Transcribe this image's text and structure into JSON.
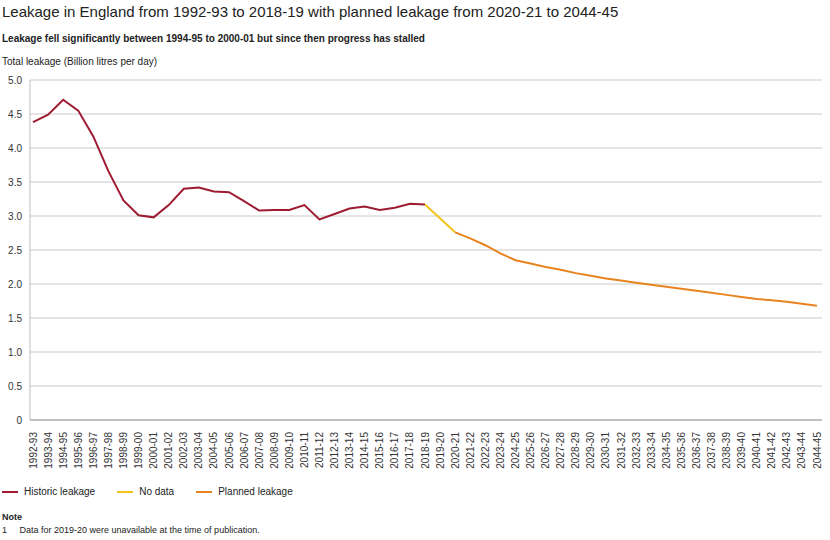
{
  "chart_data": {
    "type": "line",
    "title": "Leakage in England from 1992-93 to 2018-19 with planned leakage from 2020-21 to 2044-45",
    "subtitle": "Leakage fell significantly between 1994-95 to 2000-01 but since then progress has stalled",
    "y_label": "Total leakage (Billion litres per day)",
    "note_title": "Note",
    "note": "1     Data for 2019-20 were unavailable at the time of publication.",
    "categories": [
      "1992-93",
      "1993-94",
      "1994-95",
      "1995-96",
      "1996-97",
      "1997-98",
      "1998-99",
      "1999-00",
      "2000-01",
      "2001-02",
      "2002-03",
      "2003-04",
      "2004-05",
      "2005-06",
      "2006-07",
      "2007-08",
      "2008-09",
      "2009-10",
      "2010-11",
      "2011-12",
      "2012-13",
      "2013-14",
      "2014-15",
      "2015-16",
      "2016-17",
      "2017-18",
      "2018-19",
      "2019-20",
      "2020-21",
      "2021-22",
      "2022-23",
      "2023-24",
      "2024-25",
      "2025-26",
      "2026-27",
      "2027-28",
      "2028-29",
      "2029-30",
      "2030-31",
      "2031-32",
      "2032-33",
      "2033-34",
      "2034-35",
      "2035-36",
      "2036-37",
      "2037-38",
      "2038-39",
      "2039-40",
      "2040-41",
      "2041-42",
      "2042-43",
      "2043-44",
      "2044-45"
    ],
    "series": [
      {
        "name": "Historic leakage",
        "color": "#9e1b32",
        "values": [
          4.38,
          4.49,
          4.71,
          4.55,
          4.17,
          3.66,
          3.23,
          3.01,
          2.98,
          3.16,
          3.4,
          3.42,
          3.36,
          3.35,
          3.22,
          3.08,
          3.09,
          3.09,
          3.16,
          2.95,
          3.03,
          3.11,
          3.14,
          3.09,
          3.12,
          3.18,
          3.17,
          null,
          null,
          null,
          null,
          null,
          null,
          null,
          null,
          null,
          null,
          null,
          null,
          null,
          null,
          null,
          null,
          null,
          null,
          null,
          null,
          null,
          null,
          null,
          null,
          null,
          null
        ]
      },
      {
        "name": "No data",
        "color": "#f2c318",
        "values": [
          null,
          null,
          null,
          null,
          null,
          null,
          null,
          null,
          null,
          null,
          null,
          null,
          null,
          null,
          null,
          null,
          null,
          null,
          null,
          null,
          null,
          null,
          null,
          null,
          null,
          null,
          3.17,
          null,
          2.76,
          null,
          null,
          null,
          null,
          null,
          null,
          null,
          null,
          null,
          null,
          null,
          null,
          null,
          null,
          null,
          null,
          null,
          null,
          null,
          null,
          null,
          null,
          null,
          null
        ]
      },
      {
        "name": "Planned leakage",
        "color": "#e8841f",
        "values": [
          null,
          null,
          null,
          null,
          null,
          null,
          null,
          null,
          null,
          null,
          null,
          null,
          null,
          null,
          null,
          null,
          null,
          null,
          null,
          null,
          null,
          null,
          null,
          null,
          null,
          null,
          null,
          null,
          2.76,
          2.67,
          2.57,
          2.45,
          2.35,
          2.3,
          2.25,
          2.21,
          2.16,
          2.12,
          2.08,
          2.05,
          2.02,
          1.99,
          1.96,
          1.93,
          1.9,
          1.87,
          1.84,
          1.81,
          1.78,
          1.76,
          1.74,
          1.71,
          1.68
        ]
      }
    ],
    "ylim": [
      0,
      5
    ],
    "yticks": [
      0,
      0.5,
      {
        "value": 1,
        "label": "1.0"
      },
      1.5,
      {
        "value": 2,
        "label": "2.0"
      },
      2.5,
      {
        "value": 3,
        "label": "3.0"
      },
      3.5,
      {
        "value": 4,
        "label": "4.0"
      },
      4.5,
      {
        "value": 5,
        "label": "5.0"
      }
    ],
    "grid": true,
    "legend": "bottom-left"
  }
}
